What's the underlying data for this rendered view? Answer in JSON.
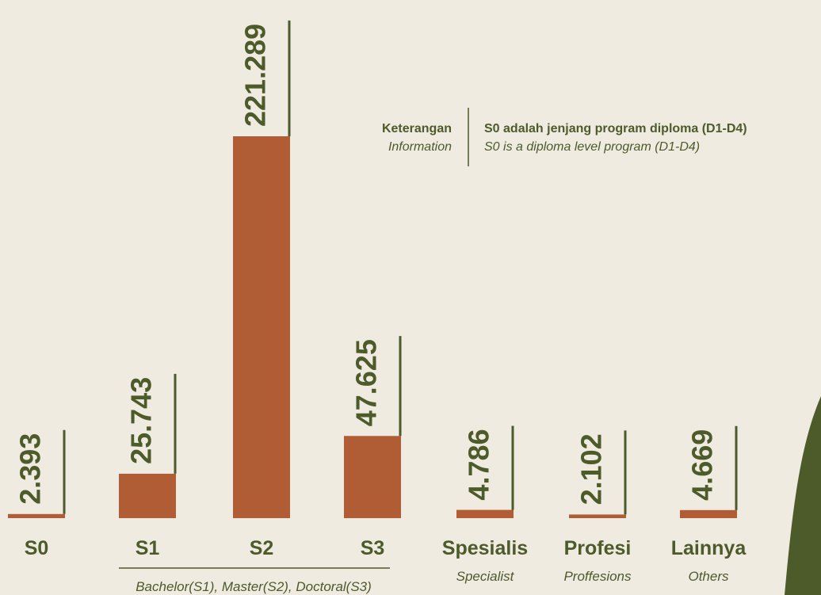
{
  "chart_data": {
    "type": "bar",
    "categories": [
      "S0",
      "S1",
      "S2",
      "S3",
      "Spesialis",
      "Profesi",
      "Lainnya"
    ],
    "category_subtitles": [
      null,
      null,
      null,
      null,
      "Specialist",
      "Proffesions",
      "Others"
    ],
    "values": [
      2393,
      25743,
      221289,
      47625,
      4786,
      2102,
      4669
    ],
    "value_labels": [
      "2.393",
      "25.743",
      "221.289",
      "47.625",
      "4.786",
      "2.102",
      "4.669"
    ],
    "color": "#b05c34",
    "group_label": "Bachelor(S1), Master(S2), Doctoral(S3)",
    "legend": {
      "title": "Keterangan",
      "title_translation": "Information",
      "text": "S0 adalah jenjang program diploma (D1-D4)",
      "text_translation": "S0 is a diploma level program (D1-D4)"
    }
  }
}
